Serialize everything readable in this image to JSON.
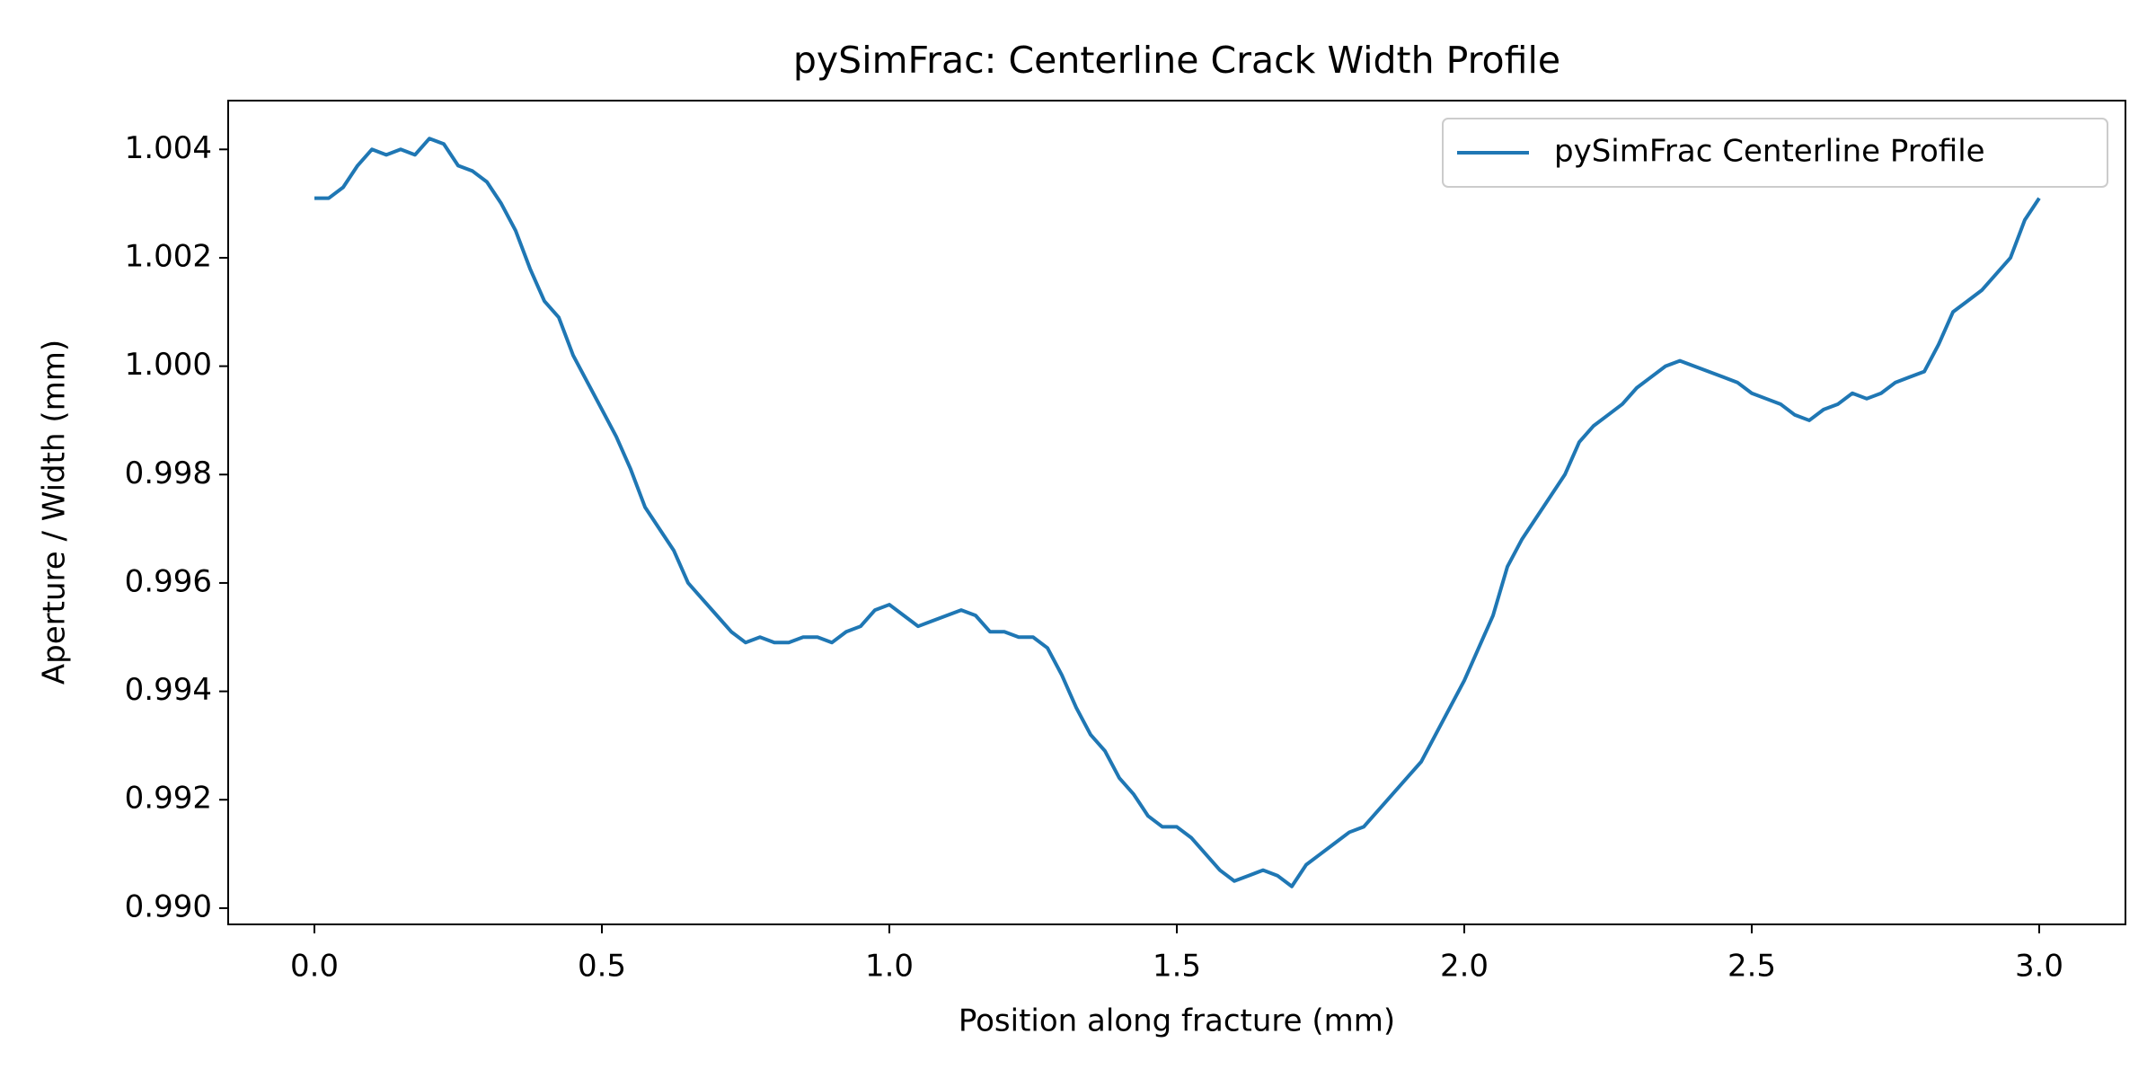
{
  "chart_data": {
    "type": "line",
    "title": "pySimFrac: Centerline Crack Width Profile",
    "xlabel": "Position along fracture (mm)",
    "ylabel": "Aperture / Width (mm)",
    "x": [
      0,
      0.025,
      0.05,
      0.075,
      0.1,
      0.125,
      0.15,
      0.175,
      0.2,
      0.225,
      0.25,
      0.275,
      0.3,
      0.325,
      0.35,
      0.375,
      0.4,
      0.425,
      0.45,
      0.475,
      0.5,
      0.525,
      0.55,
      0.575,
      0.6,
      0.625,
      0.65,
      0.675,
      0.7,
      0.725,
      0.75,
      0.775,
      0.8,
      0.825,
      0.85,
      0.875,
      0.9,
      0.925,
      0.95,
      0.975,
      1.0,
      1.025,
      1.05,
      1.075,
      1.1,
      1.125,
      1.15,
      1.175,
      1.2,
      1.225,
      1.25,
      1.275,
      1.3,
      1.325,
      1.35,
      1.375,
      1.4,
      1.425,
      1.45,
      1.475,
      1.5,
      1.525,
      1.55,
      1.575,
      1.6,
      1.625,
      1.65,
      1.675,
      1.7,
      1.725,
      1.75,
      1.775,
      1.8,
      1.825,
      1.85,
      1.875,
      1.9,
      1.925,
      1.95,
      1.975,
      2.0,
      2.025,
      2.05,
      2.075,
      2.1,
      2.125,
      2.15,
      2.175,
      2.2,
      2.225,
      2.25,
      2.275,
      2.3,
      2.325,
      2.35,
      2.375,
      2.4,
      2.425,
      2.45,
      2.475,
      2.5,
      2.525,
      2.55,
      2.575,
      2.6,
      2.625,
      2.65,
      2.675,
      2.7,
      2.725,
      2.75,
      2.775,
      2.8,
      2.825,
      2.85,
      2.875,
      2.9,
      2.925,
      2.95,
      2.975,
      3.0
    ],
    "series": [
      {
        "name": "pySimFrac Centerline Profile",
        "color": "#1f77b4",
        "values": [
          1.0031,
          1.0031,
          1.0033,
          1.0037,
          1.004,
          1.0039,
          1.004,
          1.0039,
          1.0042,
          1.0041,
          1.0037,
          1.0036,
          1.0034,
          1.003,
          1.0025,
          1.0018,
          1.0012,
          1.0009,
          1.0002,
          0.9997,
          0.9992,
          0.9987,
          0.9981,
          0.9974,
          0.997,
          0.9966,
          0.996,
          0.9957,
          0.9954,
          0.9951,
          0.9949,
          0.995,
          0.9949,
          0.9949,
          0.995,
          0.995,
          0.9949,
          0.9951,
          0.9952,
          0.9955,
          0.9956,
          0.9954,
          0.9952,
          0.9953,
          0.9954,
          0.9955,
          0.9954,
          0.9951,
          0.9951,
          0.995,
          0.995,
          0.9948,
          0.9943,
          0.9937,
          0.9932,
          0.9929,
          0.9924,
          0.9921,
          0.9917,
          0.9915,
          0.9915,
          0.9913,
          0.991,
          0.9907,
          0.9905,
          0.9906,
          0.9907,
          0.9906,
          0.9904,
          0.9908,
          0.991,
          0.9912,
          0.9914,
          0.9915,
          0.9918,
          0.9921,
          0.9924,
          0.9927,
          0.9932,
          0.9937,
          0.9942,
          0.9948,
          0.9954,
          0.9963,
          0.9968,
          0.9972,
          0.9976,
          0.998,
          0.9986,
          0.9989,
          0.9991,
          0.9993,
          0.9996,
          0.9998,
          1.0,
          1.0001,
          1.0,
          0.9999,
          0.9998,
          0.9997,
          0.9995,
          0.9994,
          0.9993,
          0.9991,
          0.999,
          0.9992,
          0.9993,
          0.9995,
          0.9994,
          0.9995,
          0.9997,
          0.9998,
          0.9999,
          1.0004,
          1.001,
          1.0012,
          1.0014,
          1.0017,
          1.002,
          1.0027,
          1.0031
        ]
      }
    ],
    "xlim": [
      -0.15,
      3.15
    ],
    "ylim": [
      0.9897,
      1.0049
    ],
    "xticks": [
      {
        "value": 0,
        "label": "0.0"
      },
      0.5,
      {
        "value": 1,
        "label": "1.0"
      },
      1.5,
      {
        "value": 2,
        "label": "2.0"
      },
      2.5,
      {
        "value": 3,
        "label": "3.0"
      }
    ],
    "yticks": [
      {
        "value": 0.99,
        "label": "0.990"
      },
      0.992,
      0.994,
      0.996,
      0.998,
      {
        "value": 1,
        "label": "1.000"
      },
      1.002,
      1.004
    ],
    "legend": "upper right",
    "grid": false
  }
}
